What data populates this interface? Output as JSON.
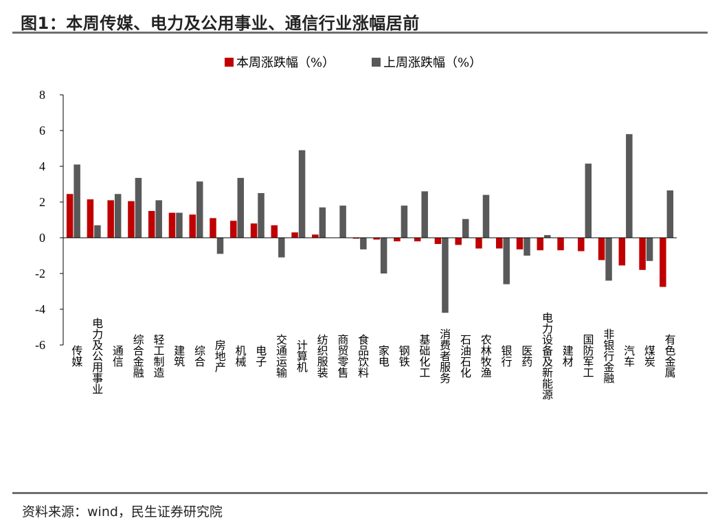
{
  "header": {
    "title": "图1：本周传媒、电力及公用事业、通信行业涨幅居前"
  },
  "footer": {
    "source": "资料来源：wind，民生证券研究院"
  },
  "colors": {
    "this_week": "#c00000",
    "last_week": "#595959",
    "rule": "#6e6e6e"
  },
  "chart_data": {
    "type": "bar",
    "title": "",
    "xlabel": "",
    "ylabel": "",
    "ylim": [
      -6,
      8
    ],
    "yticks": [
      8,
      6,
      4,
      2,
      0,
      -2,
      -4,
      -6
    ],
    "grid": false,
    "legend_position": "top-center",
    "categories": [
      "传媒",
      "电力及公用事业",
      "通信",
      "综合金融",
      "轻工制造",
      "建筑",
      "综合",
      "房地产",
      "机械",
      "电子",
      "交通运输",
      "计算机",
      "纺织服装",
      "商贸零售",
      "食品饮料",
      "家电",
      "钢铁",
      "基础化工",
      "消费者服务",
      "石油石化",
      "农林牧渔",
      "银行",
      "医药",
      "电力设备及新能源",
      "建材",
      "国防军工",
      "非银行金融",
      "汽车",
      "煤炭",
      "有色金属"
    ],
    "series": [
      {
        "name": "本周涨跌幅（%）",
        "color": "#c00000",
        "values": [
          2.45,
          2.15,
          2.1,
          2.05,
          1.5,
          1.4,
          1.3,
          1.1,
          0.95,
          0.8,
          0.7,
          0.3,
          0.18,
          0.0,
          -0.05,
          -0.1,
          -0.2,
          -0.2,
          -0.35,
          -0.4,
          -0.6,
          -0.6,
          -0.65,
          -0.7,
          -0.7,
          -0.75,
          -1.25,
          -1.55,
          -1.8,
          -2.75
        ]
      },
      {
        "name": "上周涨跌幅（%）",
        "color": "#595959",
        "values": [
          4.1,
          0.7,
          2.45,
          3.35,
          2.1,
          1.4,
          3.15,
          -0.9,
          3.35,
          2.5,
          -1.1,
          4.9,
          1.7,
          1.8,
          -0.65,
          -2.0,
          1.8,
          2.6,
          -4.2,
          1.05,
          2.4,
          -2.6,
          -1.0,
          0.15,
          0.0,
          4.15,
          -2.4,
          5.8,
          -1.3,
          2.65
        ]
      }
    ]
  }
}
